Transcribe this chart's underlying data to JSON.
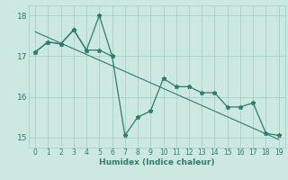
{
  "xlabel": "Humidex (Indice chaleur)",
  "x_full": [
    0,
    1,
    2,
    3,
    4,
    5,
    6,
    7,
    8,
    9,
    10,
    11,
    12,
    13,
    14,
    15,
    16,
    17,
    18,
    19
  ],
  "line1_y": [
    17.1,
    17.35,
    17.3,
    17.65,
    17.15,
    17.15,
    17.0,
    15.05,
    15.5,
    15.65,
    16.45,
    16.25,
    16.25,
    16.1,
    16.1,
    15.75,
    15.75,
    15.85,
    15.1,
    15.05
  ],
  "line2_x": [
    0,
    1,
    2,
    3,
    4,
    5,
    6
  ],
  "line2_y": [
    17.1,
    17.35,
    17.3,
    17.65,
    17.15,
    18.0,
    17.0
  ],
  "trend_x": [
    0,
    19
  ],
  "trend_y": [
    17.6,
    14.95
  ],
  "line_color": "#2e7d6e",
  "bg_color": "#cce8e0",
  "grid_color": "#9ecfc4",
  "ylim": [
    14.75,
    18.25
  ],
  "yticks": [
    15,
    16,
    17,
    18
  ],
  "xticks": [
    0,
    1,
    2,
    3,
    4,
    5,
    6,
    7,
    8,
    9,
    10,
    11,
    12,
    13,
    14,
    15,
    16,
    17,
    18,
    19
  ]
}
